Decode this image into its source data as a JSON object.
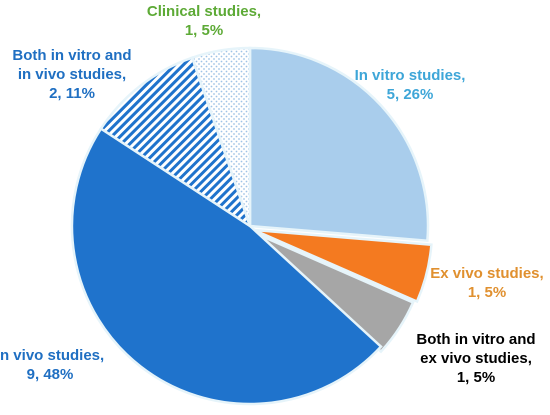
{
  "chart_data": {
    "type": "pie",
    "title": "",
    "slices": [
      {
        "name": "In vitro studies",
        "value": 5,
        "percent": "26%",
        "color": "#a9cdec",
        "label_color": "#3ea6d8",
        "line1": "In vitro studies,",
        "line2": "5, 26%",
        "line3": "",
        "pattern": "solid"
      },
      {
        "name": "Ex vivo studies",
        "value": 1,
        "percent": "5%",
        "color": "#f47a20",
        "label_color": "#e0902f",
        "line1": "Ex vivo studies,",
        "line2": "1, 5%",
        "line3": "",
        "pattern": "solid"
      },
      {
        "name": "Both in vitro and ex vivo studies",
        "value": 1,
        "percent": "5%",
        "color": "#a6a6a6",
        "label_color": "#000000",
        "line1": "Both in vitro and",
        "line2": "ex vivo studies,",
        "line3": "1, 5%",
        "pattern": "solid"
      },
      {
        "name": "In vivo studies",
        "value": 9,
        "percent": "48%",
        "color": "#1f73cc",
        "label_color": "#1f6fc2",
        "line1": "In vivo studies,",
        "line2": "9, 48%",
        "line3": "",
        "pattern": "solid"
      },
      {
        "name": "Both in vitro and in vivo studies",
        "value": 2,
        "percent": "11%",
        "color": "#1f73cc",
        "label_color": "#1f6fc2",
        "line1": "Both in vitro and",
        "line2": "in vivo studies,",
        "line3": "2, 11%",
        "pattern": "stripes"
      },
      {
        "name": "Clinical studies",
        "value": 1,
        "percent": "5%",
        "color": "#9fc3e6",
        "label_color": "#5daa36",
        "line1": "Clinical studies,",
        "line2": "1, 5%",
        "line3": "",
        "pattern": "dots"
      }
    ]
  }
}
